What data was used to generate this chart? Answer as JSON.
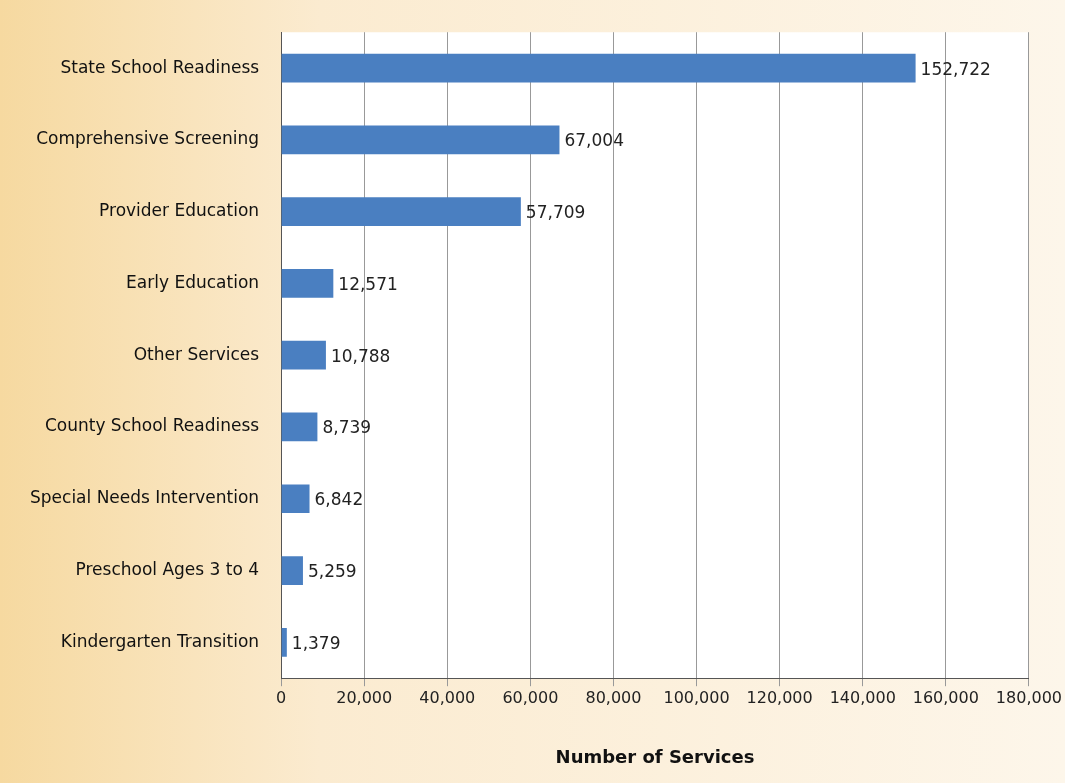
{
  "chart_data": {
    "type": "bar",
    "orientation": "horizontal",
    "xlabel": "Number of Services",
    "categories": [
      "State School Readiness",
      "Comprehensive Screening",
      "Provider Education",
      "Early Education",
      "Other Services",
      "County School Readiness",
      "Special Needs Intervention",
      "Preschool Ages 3 to 4",
      "Kindergarten Transition"
    ],
    "values": [
      152722,
      67004,
      57709,
      12571,
      10788,
      8739,
      6842,
      5259,
      1379
    ],
    "value_labels": [
      "152,722",
      "67,004",
      "57,709",
      "12,571",
      "10,788",
      "8,739",
      "6,842",
      "5,259",
      "1,379"
    ],
    "color": "#4a7fc1",
    "xlim": [
      0,
      180000
    ],
    "xticks": [
      {
        "value": 0,
        "label": "0"
      },
      {
        "value": 20000,
        "label": "20,000"
      },
      {
        "value": 40000,
        "label": "40,000"
      },
      {
        "value": 60000,
        "label": "60,000"
      },
      {
        "value": 80000,
        "label": "80,000"
      },
      {
        "value": 100000,
        "label": "100,000"
      },
      {
        "value": 120000,
        "label": "120,000"
      },
      {
        "value": 140000,
        "label": "140,000"
      },
      {
        "value": 160000,
        "label": "160,000"
      },
      {
        "value": 180000,
        "label": "180,000"
      }
    ],
    "grid": "x",
    "legend": false
  }
}
